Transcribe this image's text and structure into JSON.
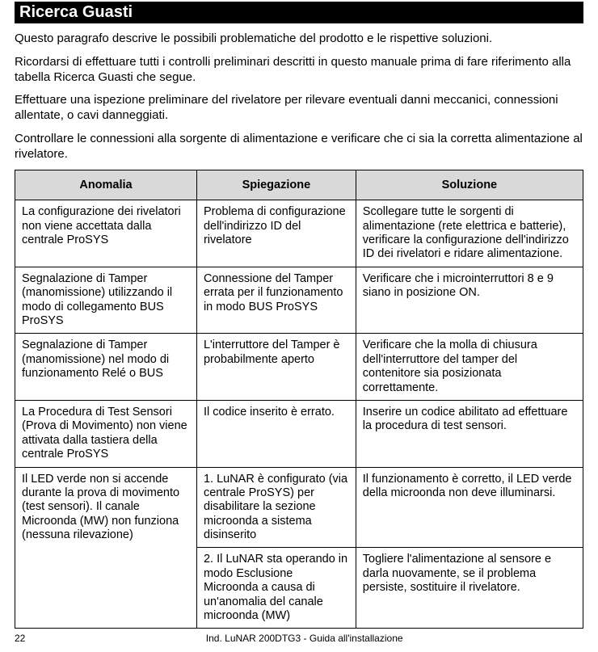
{
  "title": "Ricerca Guasti",
  "paragraphs": [
    "Questo paragrafo descrive le possibili problematiche del prodotto e le rispettive soluzioni.",
    "Ricordarsi di effettuare tutti i controlli preliminari descritti in questo manuale prima di fare riferimento alla tabella Ricerca Guasti che segue.",
    "Effettuare una ispezione preliminare del rivelatore per rilevare eventuali danni meccanici, connessioni allentate, o cavi danneggiati.",
    "Controllare le connessioni alla sorgente di alimentazione e verificare che ci sia la corretta alimentazione al rivelatore."
  ],
  "table": {
    "headers": [
      "Anomalia",
      "Spiegazione",
      "Soluzione"
    ],
    "rows": [
      {
        "anomalia": "La configurazione  dei rivelatori non viene accettata  dalla centrale ProSYS",
        "spiegazione": "Problema di configurazione dell'indirizzo ID del rivelatore",
        "soluzione": "Scollegare tutte le sorgenti di alimentazione  (rete elettrica e batterie), verificare la configurazione dell'indirizzo ID dei rivelatori e ridare alimentazione."
      },
      {
        "anomalia": "Segnalazione di Tamper (manomissione) utilizzando il modo di collegamento BUS ProSYS",
        "spiegazione": "Connessione del Tamper errata per il funzionamento in modo BUS ProSYS",
        "soluzione": "Verificare che i microinterruttori 8 e 9 siano in posizione ON."
      },
      {
        "anomalia": "Segnalazione di Tamper (manomissione) nel modo di funzionamento Relé o BUS",
        "spiegazione": "L'interruttore del Tamper è probabilmente aperto",
        "soluzione": "Verificare che la molla di chiusura dell'interruttore del tamper del contenitore sia posizionata correttamente."
      },
      {
        "anomalia": "La Procedura di Test Sensori (Prova di Movimento) non viene attivata dalla tastiera della centrale ProSYS",
        "spiegazione": "Il codice inserito è errato.",
        "soluzione": "Inserire un codice abilitato ad effettuare la procedura di test sensori."
      },
      {
        "anomalia": "Il LED verde non si accende durante la prova di movimento (test sensori). Il canale Microonda (MW) non funziona (nessuna rilevazione)",
        "spiegazione": "1.  LuNAR è configurato (via centrale ProSYS)  per disabilitare la sezione microonda a sistema disinserito",
        "soluzione": "Il funzionamento è corretto, il LED verde della microonda non deve illuminarsi."
      },
      {
        "anomalia": "",
        "spiegazione": "2.  Il LuNAR sta operando in modo Esclusione Microonda a causa di un'anomalia del canale microonda (MW)",
        "soluzione": "Togliere l'alimentazione al sensore e darla nuovamente, se il problema persiste, sostituire il rivelatore."
      }
    ]
  },
  "footer": {
    "page": "22",
    "text": "Ind. LuNAR 200DTG3 - Guida all'installazione"
  },
  "colors": {
    "header_bg": "#d9d9d9",
    "title_bg": "#000000",
    "title_fg": "#ffffff",
    "border": "#000000"
  }
}
